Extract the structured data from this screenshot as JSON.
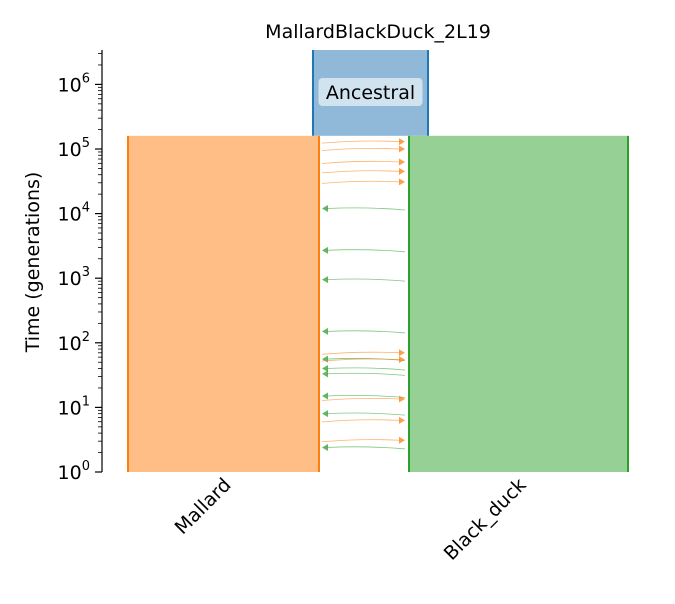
{
  "title": "MallardBlackDuck_2L19",
  "y_axis": {
    "label": "Time (generations)",
    "scale": "log",
    "range": [
      1,
      3000000
    ],
    "ticks": [
      {
        "value": 1,
        "base": "10",
        "exp": "0"
      },
      {
        "value": 10,
        "base": "10",
        "exp": "1"
      },
      {
        "value": 100,
        "base": "10",
        "exp": "2"
      },
      {
        "value": 1000,
        "base": "10",
        "exp": "3"
      },
      {
        "value": 10000,
        "base": "10",
        "exp": "4"
      },
      {
        "value": 100000,
        "base": "10",
        "exp": "5"
      },
      {
        "value": 1000000,
        "base": "10",
        "exp": "6"
      }
    ]
  },
  "demes": [
    {
      "name": "Ancestral",
      "start_time": 3000000,
      "end_time": 160000,
      "fill": "#8fb8d9",
      "stroke": "#1f77b4"
    },
    {
      "name": "Mallard",
      "start_time": 160000,
      "end_time": 1,
      "fill": "#ffbe86",
      "stroke": "#ff7f0e"
    },
    {
      "name": "Black_duck",
      "start_time": 160000,
      "end_time": 1,
      "fill": "#97d095",
      "stroke": "#2ca02c"
    }
  ],
  "colors": {
    "mallard_to_black": "#ff7f0e",
    "black_to_mallard": "#2ca02c"
  },
  "migrations": [
    {
      "time": 130000,
      "source": "Mallard",
      "dest": "Black_duck"
    },
    {
      "time": 100000,
      "source": "Mallard",
      "dest": "Black_duck"
    },
    {
      "time": 63000,
      "source": "Mallard",
      "dest": "Black_duck"
    },
    {
      "time": 45000,
      "source": "Mallard",
      "dest": "Black_duck"
    },
    {
      "time": 31000,
      "source": "Mallard",
      "dest": "Black_duck"
    },
    {
      "time": 12000,
      "source": "Black_duck",
      "dest": "Mallard"
    },
    {
      "time": 2700,
      "source": "Black_duck",
      "dest": "Mallard"
    },
    {
      "time": 950,
      "source": "Black_duck",
      "dest": "Mallard"
    },
    {
      "time": 150,
      "source": "Black_duck",
      "dest": "Mallard"
    },
    {
      "time": 70,
      "source": "Mallard",
      "dest": "Black_duck"
    },
    {
      "time": 56,
      "source": "Black_duck",
      "dest": "Mallard"
    },
    {
      "time": 55,
      "source": "Mallard",
      "dest": "Black_duck"
    },
    {
      "time": 40,
      "source": "Black_duck",
      "dest": "Mallard"
    },
    {
      "time": 33,
      "source": "Black_duck",
      "dest": "Mallard"
    },
    {
      "time": 15,
      "source": "Black_duck",
      "dest": "Mallard"
    },
    {
      "time": 13.5,
      "source": "Mallard",
      "dest": "Black_duck"
    },
    {
      "time": 8,
      "source": "Black_duck",
      "dest": "Mallard"
    },
    {
      "time": 6.3,
      "source": "Mallard",
      "dest": "Black_duck"
    },
    {
      "time": 3.1,
      "source": "Mallard",
      "dest": "Black_duck"
    },
    {
      "time": 2.4,
      "source": "Black_duck",
      "dest": "Mallard"
    }
  ]
}
